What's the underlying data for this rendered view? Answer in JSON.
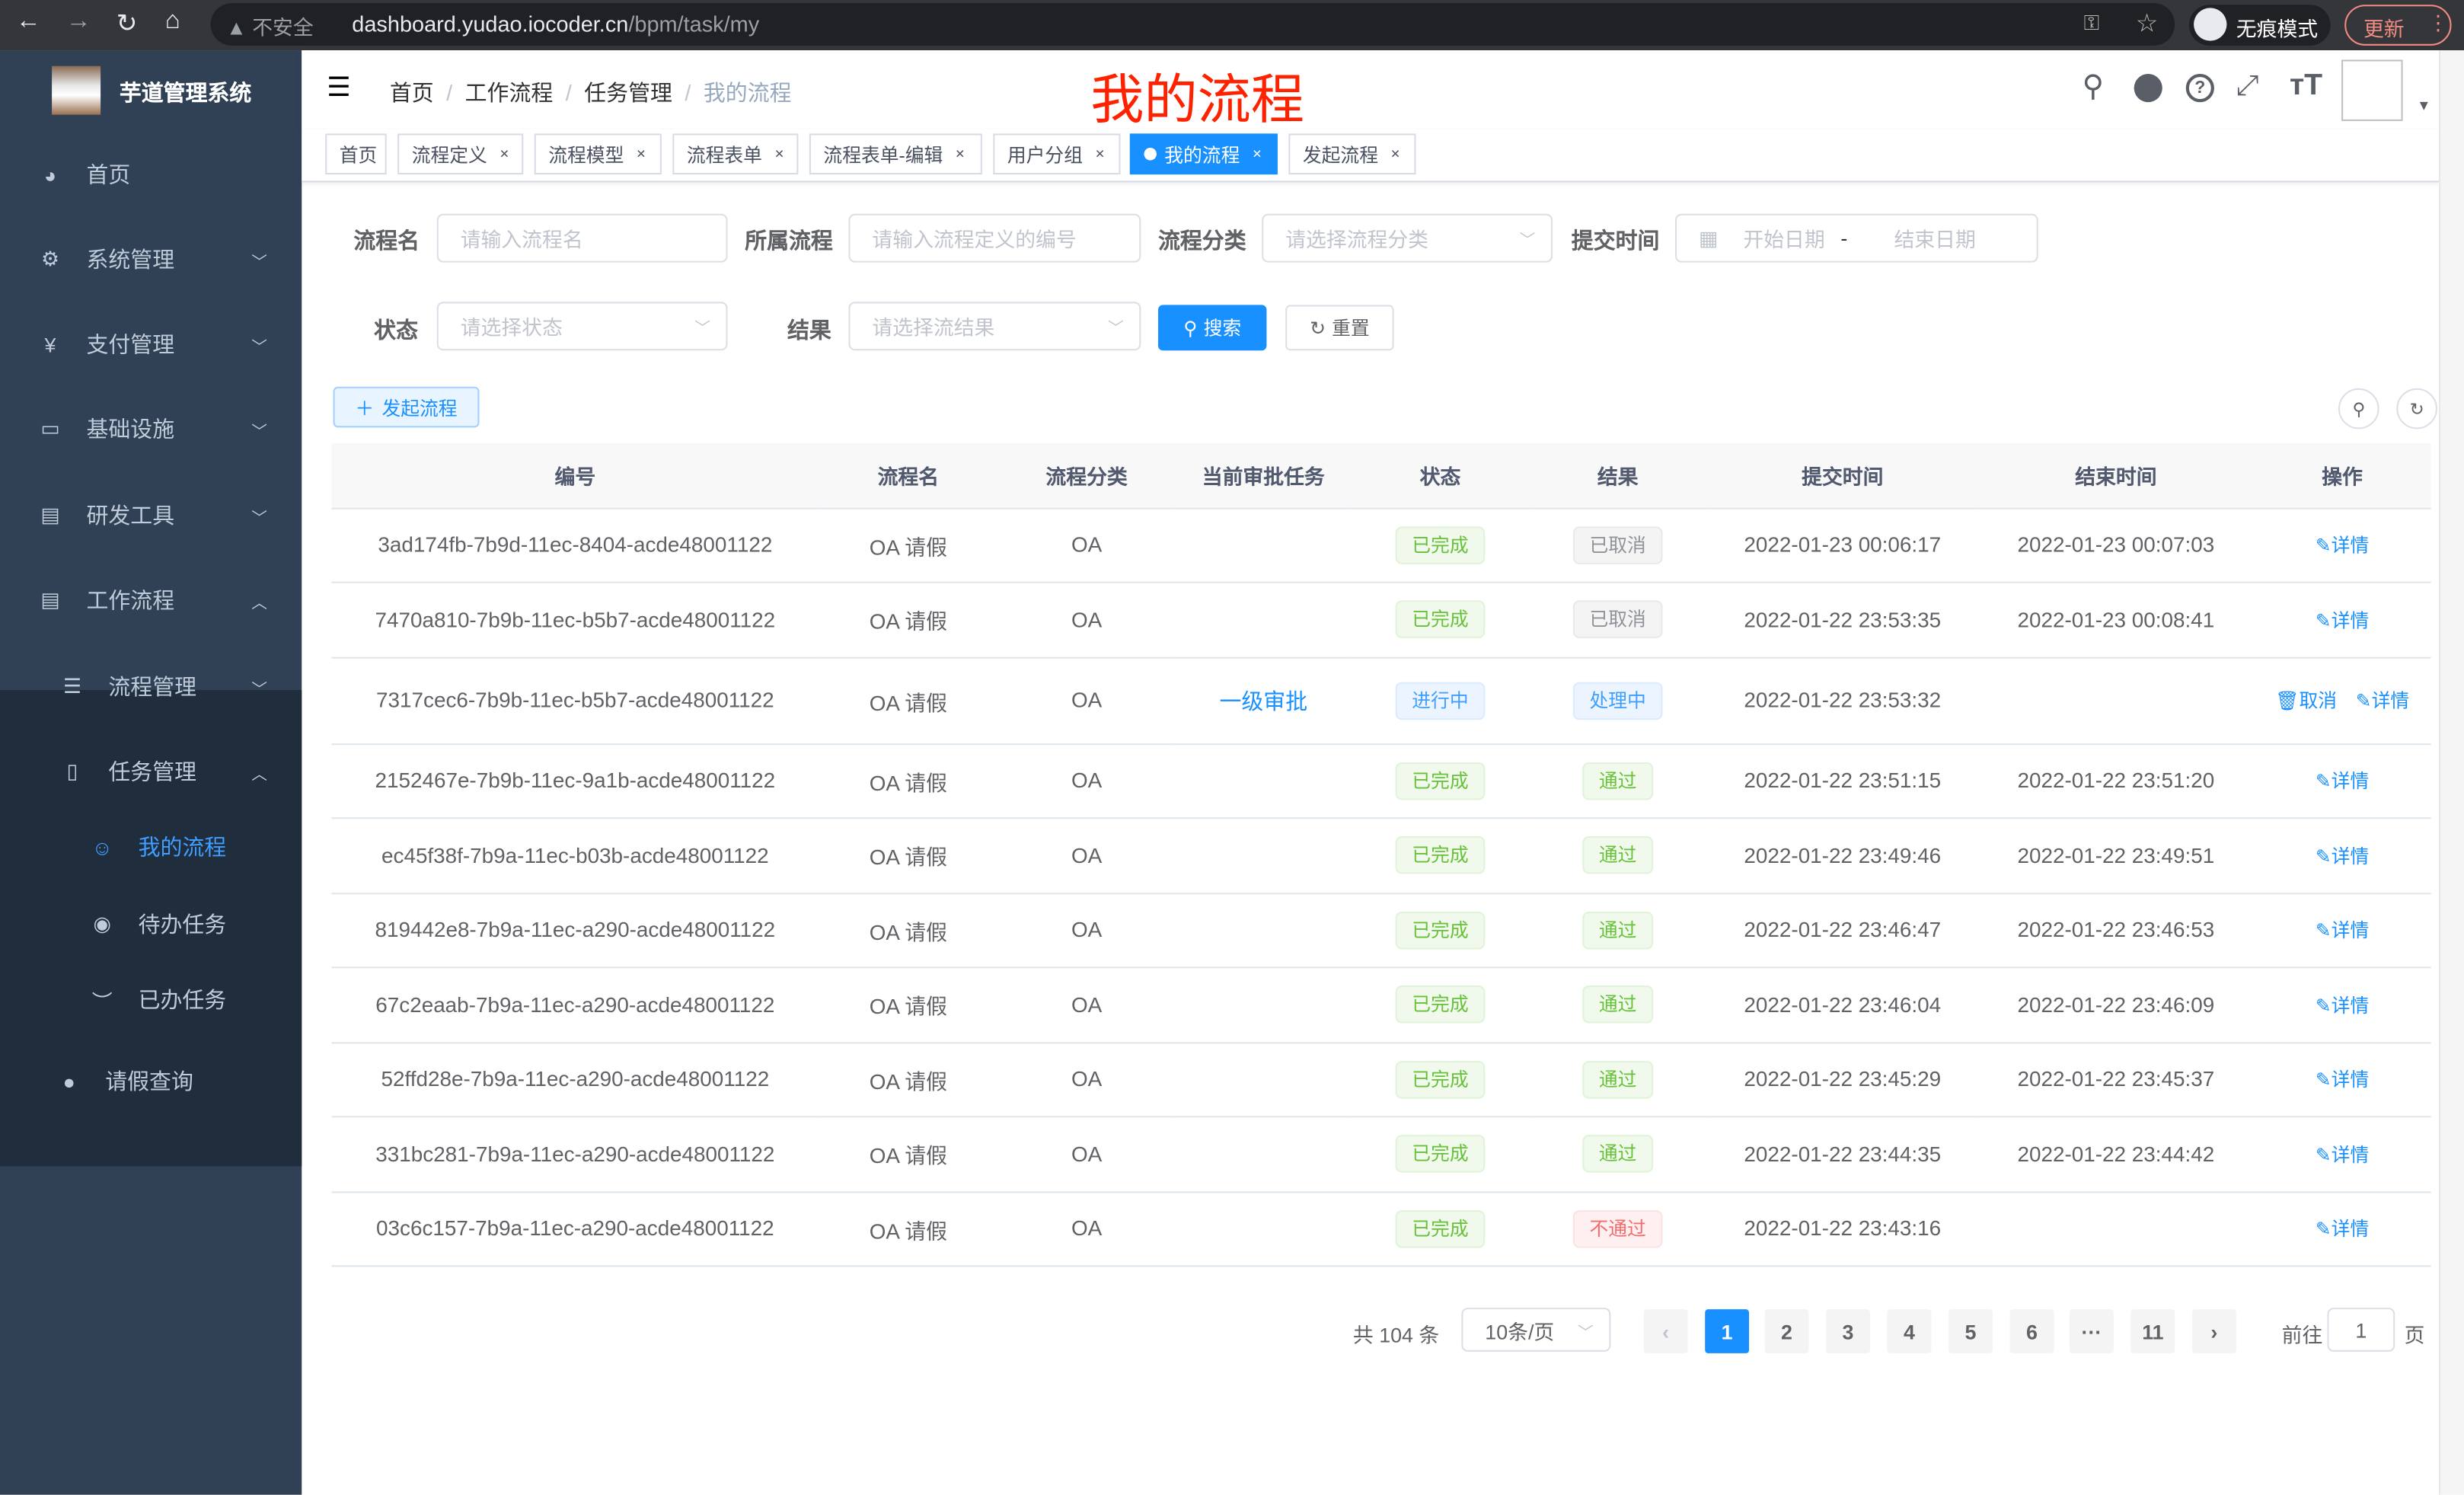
{
  "browser": {
    "security": "不安全",
    "url_host": "dashboard.yudao.iocoder.cn",
    "url_path": "/bpm/task/my",
    "incognito": "无痕模式",
    "update": "更新"
  },
  "sidebar": {
    "title": "芋道管理系统",
    "items": [
      {
        "label": "首页",
        "icon": "dashboard-icon"
      },
      {
        "label": "系统管理",
        "icon": "gear-icon"
      },
      {
        "label": "支付管理",
        "icon": "yuan-icon"
      },
      {
        "label": "基础设施",
        "icon": "monitor-icon"
      },
      {
        "label": "研发工具",
        "icon": "toolbox-icon"
      },
      {
        "label": "工作流程",
        "icon": "toolbox-icon"
      },
      {
        "label": "流程管理",
        "icon": "list-icon"
      },
      {
        "label": "任务管理",
        "icon": "task-icon"
      },
      {
        "label": "我的流程",
        "icon": "people-icon"
      },
      {
        "label": "待办任务",
        "icon": "eye-icon"
      },
      {
        "label": "已办任务",
        "icon": "eye-closed-icon"
      },
      {
        "label": "请假查询",
        "icon": "user-icon"
      }
    ]
  },
  "breadcrumb": [
    "首页",
    "工作流程",
    "任务管理",
    "我的流程"
  ],
  "overlay_title": "我的流程",
  "tags": [
    {
      "label": "首页"
    },
    {
      "label": "流程定义"
    },
    {
      "label": "流程模型"
    },
    {
      "label": "流程表单"
    },
    {
      "label": "流程表单-编辑"
    },
    {
      "label": "用户分组"
    },
    {
      "label": "我的流程",
      "active": true
    },
    {
      "label": "发起流程"
    }
  ],
  "filters": {
    "name_label": "流程名",
    "name_placeholder": "请输入流程名",
    "process_label": "所属流程",
    "process_placeholder": "请输入流程定义的编号",
    "category_label": "流程分类",
    "category_placeholder": "请选择流程分类",
    "time_label": "提交时间",
    "start_placeholder": "开始日期",
    "range_sep": "-",
    "end_placeholder": "结束日期",
    "status_label": "状态",
    "status_placeholder": "请选择状态",
    "result_label": "结果",
    "result_placeholder": "请选择流结果",
    "search": "搜索",
    "reset": "重置"
  },
  "add_button": "发起流程",
  "table": {
    "columns": [
      "编号",
      "流程名",
      "流程分类",
      "当前审批任务",
      "状态",
      "结果",
      "提交时间",
      "结束时间",
      "操作"
    ],
    "rows": [
      {
        "id": "3ad174fb-7b9d-11ec-8404-acde48001122",
        "name": "OA 请假",
        "category": "OA",
        "task": "",
        "status": "已完成",
        "result": "已取消",
        "submit": "2022-01-23 00:06:17",
        "end": "2022-01-23 00:07:03",
        "actions": [
          "详情"
        ]
      },
      {
        "id": "7470a810-7b9b-11ec-b5b7-acde48001122",
        "name": "OA 请假",
        "category": "OA",
        "task": "",
        "status": "已完成",
        "result": "已取消",
        "submit": "2022-01-22 23:53:35",
        "end": "2022-01-23 00:08:41",
        "actions": [
          "详情"
        ]
      },
      {
        "id": "7317cec6-7b9b-11ec-b5b7-acde48001122",
        "name": "OA 请假",
        "category": "OA",
        "task": "一级审批",
        "status": "进行中",
        "result": "处理中",
        "submit": "2022-01-22 23:53:32",
        "end": "",
        "actions": [
          "取消",
          "详情"
        ]
      },
      {
        "id": "2152467e-7b9b-11ec-9a1b-acde48001122",
        "name": "OA 请假",
        "category": "OA",
        "task": "",
        "status": "已完成",
        "result": "通过",
        "submit": "2022-01-22 23:51:15",
        "end": "2022-01-22 23:51:20",
        "actions": [
          "详情"
        ]
      },
      {
        "id": "ec45f38f-7b9a-11ec-b03b-acde48001122",
        "name": "OA 请假",
        "category": "OA",
        "task": "",
        "status": "已完成",
        "result": "通过",
        "submit": "2022-01-22 23:49:46",
        "end": "2022-01-22 23:49:51",
        "actions": [
          "详情"
        ]
      },
      {
        "id": "819442e8-7b9a-11ec-a290-acde48001122",
        "name": "OA 请假",
        "category": "OA",
        "task": "",
        "status": "已完成",
        "result": "通过",
        "submit": "2022-01-22 23:46:47",
        "end": "2022-01-22 23:46:53",
        "actions": [
          "详情"
        ]
      },
      {
        "id": "67c2eaab-7b9a-11ec-a290-acde48001122",
        "name": "OA 请假",
        "category": "OA",
        "task": "",
        "status": "已完成",
        "result": "通过",
        "submit": "2022-01-22 23:46:04",
        "end": "2022-01-22 23:46:09",
        "actions": [
          "详情"
        ]
      },
      {
        "id": "52ffd28e-7b9a-11ec-a290-acde48001122",
        "name": "OA 请假",
        "category": "OA",
        "task": "",
        "status": "已完成",
        "result": "通过",
        "submit": "2022-01-22 23:45:29",
        "end": "2022-01-22 23:45:37",
        "actions": [
          "详情"
        ]
      },
      {
        "id": "331bc281-7b9a-11ec-a290-acde48001122",
        "name": "OA 请假",
        "category": "OA",
        "task": "",
        "status": "已完成",
        "result": "通过",
        "submit": "2022-01-22 23:44:35",
        "end": "2022-01-22 23:44:42",
        "actions": [
          "详情"
        ]
      },
      {
        "id": "03c6c157-7b9a-11ec-a290-acde48001122",
        "name": "OA 请假",
        "category": "OA",
        "task": "",
        "status": "已完成",
        "result": "不通过",
        "submit": "2022-01-22 23:43:16",
        "end": "",
        "actions": [
          "详情"
        ]
      }
    ]
  },
  "tag_styles": {
    "已完成": {
      "bg": "#f0f9eb",
      "border": "#e1f3d8",
      "color": "#67c23a"
    },
    "通过": {
      "bg": "#f0f9eb",
      "border": "#e1f3d8",
      "color": "#67c23a"
    },
    "已取消": {
      "bg": "#f4f4f5",
      "border": "#e9e9eb",
      "color": "#909399"
    },
    "进行中": {
      "bg": "#ecf5ff",
      "border": "#d9ecff",
      "color": "#409eff"
    },
    "处理中": {
      "bg": "#ecf5ff",
      "border": "#d9ecff",
      "color": "#409eff"
    },
    "不通过": {
      "bg": "#fef0f0",
      "border": "#fde2e2",
      "color": "#f56c6c"
    }
  },
  "pagination": {
    "total": "共 104 条",
    "page_size": "10条/页",
    "pages": [
      "1",
      "2",
      "3",
      "4",
      "5",
      "6",
      "···",
      "11"
    ],
    "current": "1",
    "goto_label": "前往",
    "goto_value": "1",
    "page_unit": "页"
  },
  "colors": {
    "primary": "#1890ff",
    "sidebar": "#304156",
    "title_red": "#ff2200"
  }
}
